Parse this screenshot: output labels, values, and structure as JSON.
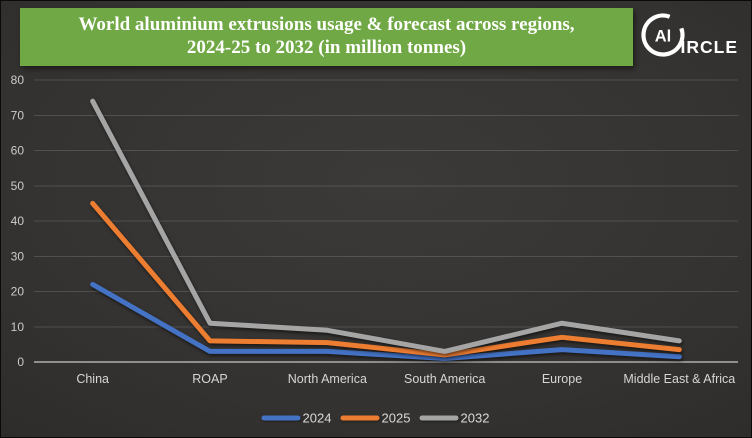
{
  "banner": {
    "title_line1": "World aluminium extrusions usage & forecast across regions,",
    "title_line2": "2024-25 to 2032  (in million tonnes)",
    "bg_color": "#6FA844",
    "text_color": "#FFFFFF"
  },
  "logo": {
    "circle_text": "Al",
    "rest_text": "IRCLE"
  },
  "chart_data": {
    "type": "line",
    "title": "World aluminium extrusions usage & forecast across regions, 2024-25 to 2032 (in million tonnes)",
    "unit": "million tonnes",
    "categories": [
      "China",
      "ROAP",
      "North America",
      "South America",
      "Europe",
      "Middle East & Africa"
    ],
    "series": [
      {
        "name": "2024",
        "color": "#4472C4",
        "values": [
          22,
          3,
          3,
          1,
          3.5,
          1.5
        ]
      },
      {
        "name": "2025",
        "color": "#ED7D31",
        "values": [
          45,
          6,
          5.5,
          2,
          7,
          3.5
        ]
      },
      {
        "name": "2032",
        "color": "#A5A5A5",
        "values": [
          74,
          11,
          9,
          3,
          11,
          6
        ]
      }
    ],
    "ylim": [
      0,
      80
    ],
    "ytick_step": 10,
    "grid": true,
    "legend_position": "bottom",
    "xlabel": "",
    "ylabel": ""
  },
  "colors": {
    "background_dark": "#2B2A28",
    "gridline": "rgba(255,255,255,0.14)",
    "axis_line": "#8F8F8F",
    "tick_text": "#CBCBCB",
    "banner_green": "#6FA844"
  }
}
